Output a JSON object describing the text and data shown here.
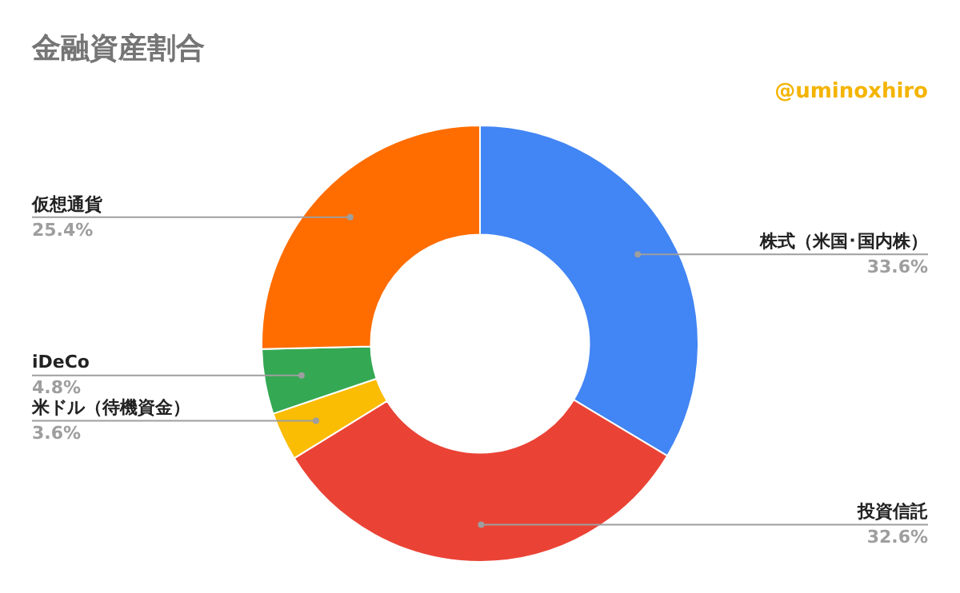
{
  "chart_data": {
    "type": "donut",
    "title": "金融資産割合",
    "annotations": [
      "@uminoxhiro"
    ],
    "categories": [
      "株式（米国･国内株）",
      "投資信託",
      "米ドル（待機資金）",
      "iDeCo",
      "仮想通貨"
    ],
    "values": [
      33.6,
      32.6,
      3.6,
      4.8,
      25.4
    ],
    "value_labels": [
      "33.6%",
      "32.6%",
      "3.6%",
      "4.8%",
      "25.4%"
    ],
    "colors": [
      "#4285f4",
      "#ea4335",
      "#fbbc04",
      "#34a853",
      "#ff6d01"
    ],
    "legend": false
  }
}
